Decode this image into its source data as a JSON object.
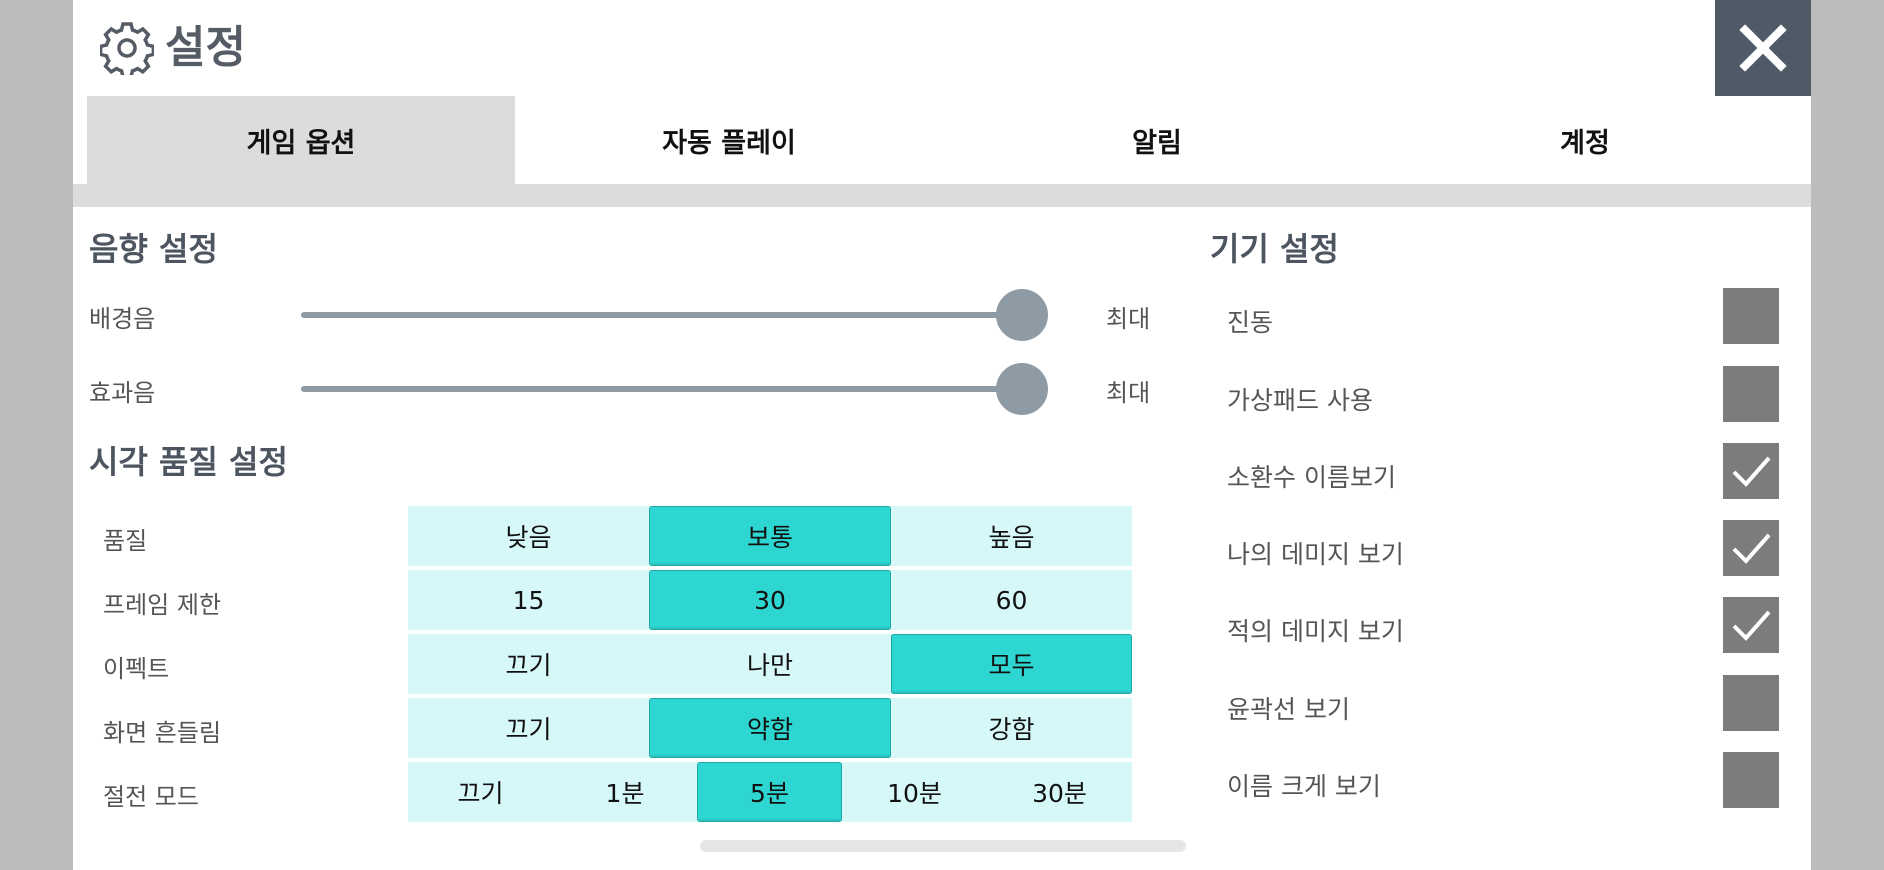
{
  "header": {
    "title": "설정",
    "gear_icon": "gear-icon",
    "close_icon": "close-icon"
  },
  "tabs": [
    {
      "label": "게임 옵션",
      "active": true
    },
    {
      "label": "자동 플레이",
      "active": false
    },
    {
      "label": "알림",
      "active": false
    },
    {
      "label": "계정",
      "active": false
    }
  ],
  "sound": {
    "title": "음향 설정",
    "bgm": {
      "label": "배경음",
      "value_label": "최대",
      "level": 1.0
    },
    "sfx": {
      "label": "효과음",
      "value_label": "최대",
      "level": 1.0
    }
  },
  "quality": {
    "title": "시각 품질 설정",
    "rows": [
      {
        "label": "품질",
        "options": [
          "낮음",
          "보통",
          "높음"
        ],
        "selected": 1
      },
      {
        "label": "프레임 제한",
        "options": [
          "15",
          "30",
          "60"
        ],
        "selected": 1
      },
      {
        "label": "이펙트",
        "options": [
          "끄기",
          "나만",
          "모두"
        ],
        "selected": 2
      },
      {
        "label": "화면 흔들림",
        "options": [
          "끄기",
          "약함",
          "강함"
        ],
        "selected": 1
      },
      {
        "label": "절전 모드",
        "options": [
          "끄기",
          "1분",
          "5분",
          "10분",
          "30분"
        ],
        "selected": 2
      }
    ]
  },
  "device": {
    "title": "기기 설정",
    "items": [
      {
        "label": "진동",
        "checked": false
      },
      {
        "label": "가상패드 사용",
        "checked": false
      },
      {
        "label": "소환수 이름보기",
        "checked": true
      },
      {
        "label": "나의 데미지 보기",
        "checked": true
      },
      {
        "label": "적의 데미지 보기",
        "checked": true
      },
      {
        "label": "윤곽선 보기",
        "checked": false
      },
      {
        "label": "이름 크게 보기",
        "checked": false
      }
    ]
  },
  "colors": {
    "accent": "#2ed6d2",
    "option_bg": "#d6f8f8",
    "checkbox": "#7c7c7c",
    "close_bg": "#505a66"
  }
}
